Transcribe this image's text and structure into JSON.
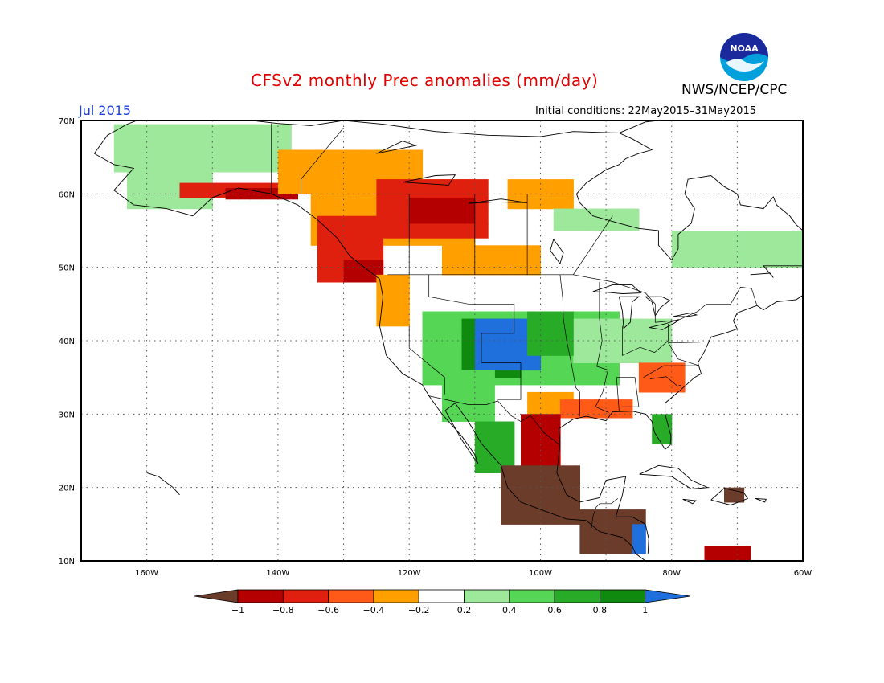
{
  "header": {
    "title": "CFSv2 monthly Prec anomalies (mm/day)",
    "organization": "NWS/NCEP/CPC",
    "valid_month": "Jul 2015",
    "initial_conditions": "Initial conditions: 22May2015–31May2015",
    "logo_text": "NOAA"
  },
  "map": {
    "lon_range": [
      -170,
      -60
    ],
    "lat_range": [
      10,
      70
    ],
    "lat_labels": [
      "70N",
      "60N",
      "50N",
      "40N",
      "30N",
      "20N",
      "10N"
    ],
    "lon_labels": [
      "160W",
      "140W",
      "120W",
      "100W",
      "80W",
      "60W"
    ],
    "grid": "dotted",
    "cell_deg": 1.875
  },
  "colorbar": {
    "tick_labels": [
      "−1",
      "−0.8",
      "−0.6",
      "−0.4",
      "−0.2",
      "0.2",
      "0.4",
      "0.6",
      "0.8",
      "1"
    ],
    "colors": {
      "lt_m1": "#6b3c2a",
      "m1_m08": "#b40000",
      "m08_m06": "#e0200e",
      "m06_m04": "#ff5a18",
      "m04_m02": "#ffa000",
      "m02_p02": "#ffffff",
      "p02_p04": "#9de89a",
      "p04_p06": "#55d655",
      "p06_p08": "#28ac28",
      "p08_p1": "#0f8a0f",
      "gt_p1": "#1f6fdc"
    }
  },
  "anomaly_regions": [
    {
      "name": "alaska-north-slope-wet",
      "value": 0.3,
      "lon": [
        -165,
        -138
      ],
      "lat": [
        63,
        69.5
      ]
    },
    {
      "name": "alaska-interior-wet",
      "value": 0.3,
      "lon": [
        -163,
        -150
      ],
      "lat": [
        58,
        63
      ]
    },
    {
      "name": "alaska-south-coast-dry",
      "value": -0.7,
      "lon": [
        -155,
        -140
      ],
      "lat": [
        59.5,
        61.5
      ]
    },
    {
      "name": "gulf-of-alaska-coast-dry",
      "value": -0.9,
      "lon": [
        -148,
        -137
      ],
      "lat": [
        59.3,
        60.8
      ]
    },
    {
      "name": "yukon-dry",
      "value": -0.3,
      "lon": [
        -140,
        -118
      ],
      "lat": [
        60,
        66
      ]
    },
    {
      "name": "northern-bc-dry",
      "value": -0.3,
      "lon": [
        -135,
        -110
      ],
      "lat": [
        53,
        62
      ]
    },
    {
      "name": "central-canada-dry",
      "value": -0.6,
      "lon": [
        -125,
        -108
      ],
      "lat": [
        54,
        62
      ]
    },
    {
      "name": "central-canada-core",
      "value": -0.9,
      "lon": [
        -120,
        -110
      ],
      "lat": [
        56,
        59.5
      ]
    },
    {
      "name": "bc-coast-dry",
      "value": -0.7,
      "lon": [
        -134,
        -124
      ],
      "lat": [
        48,
        57
      ]
    },
    {
      "name": "bc-coast-core",
      "value": -0.9,
      "lon": [
        -130,
        -124
      ],
      "lat": [
        48,
        51
      ]
    },
    {
      "name": "pacific-northwest-dry",
      "value": -0.3,
      "lon": [
        -125,
        -120
      ],
      "lat": [
        42,
        49
      ]
    },
    {
      "name": "prairies-dry",
      "value": -0.3,
      "lon": [
        -115,
        -100
      ],
      "lat": [
        49,
        53
      ]
    },
    {
      "name": "northwest-territories-dry",
      "value": -0.3,
      "lon": [
        -105,
        -95
      ],
      "lat": [
        58,
        62
      ]
    },
    {
      "name": "hudson-bay-wet",
      "value": 0.3,
      "lon": [
        -98,
        -85
      ],
      "lat": [
        55,
        58
      ]
    },
    {
      "name": "quebec-wet",
      "value": 0.3,
      "lon": [
        -80,
        -60
      ],
      "lat": [
        50,
        55
      ]
    },
    {
      "name": "great-plains-wet",
      "value": 0.5,
      "lon": [
        -118,
        -88
      ],
      "lat": [
        34,
        44
      ]
    },
    {
      "name": "midwest-wet",
      "value": 0.3,
      "lon": [
        -95,
        -80
      ],
      "lat": [
        37,
        43
      ]
    },
    {
      "name": "colorado-wet-core",
      "value": 0.8,
      "lon": [
        -112,
        -103
      ],
      "lat": [
        35,
        43
      ]
    },
    {
      "name": "kansas-wet-core",
      "value": 1.2,
      "lon": [
        -110,
        -100
      ],
      "lat": [
        36,
        43
      ]
    },
    {
      "name": "nebraska-wet",
      "value": 0.7,
      "lon": [
        -102,
        -95
      ],
      "lat": [
        38,
        44
      ]
    },
    {
      "name": "arizona-wet",
      "value": 0.5,
      "lon": [
        -115,
        -107
      ],
      "lat": [
        29,
        36
      ]
    },
    {
      "name": "west-mexico-wet",
      "value": 0.7,
      "lon": [
        -110,
        -104
      ],
      "lat": [
        22,
        29
      ]
    },
    {
      "name": "texas-dry",
      "value": -0.3,
      "lon": [
        -102,
        -95
      ],
      "lat": [
        30,
        33
      ]
    },
    {
      "name": "gulf-coast-dry",
      "value": -0.5,
      "lon": [
        -97,
        -86
      ],
      "lat": [
        29.5,
        32
      ]
    },
    {
      "name": "southeast-dry",
      "value": -0.4,
      "lon": [
        -85,
        -78
      ],
      "lat": [
        33,
        37
      ]
    },
    {
      "name": "florida-wet",
      "value": 0.6,
      "lon": [
        -83,
        -80
      ],
      "lat": [
        26,
        30
      ]
    },
    {
      "name": "mexico-east-dry",
      "value": -0.8,
      "lon": [
        -103,
        -97
      ],
      "lat": [
        22,
        30
      ]
    },
    {
      "name": "mexico-south-very-dry",
      "value": -1.3,
      "lon": [
        -106,
        -94
      ],
      "lat": [
        15,
        23
      ]
    },
    {
      "name": "central-america-very-dry",
      "value": -1.3,
      "lon": [
        -94,
        -84
      ],
      "lat": [
        11,
        17
      ]
    },
    {
      "name": "nicaragua-wet",
      "value": 1.3,
      "lon": [
        -86,
        -84
      ],
      "lat": [
        11,
        15
      ]
    },
    {
      "name": "caribbean-dry",
      "value": -0.9,
      "lon": [
        -75,
        -68
      ],
      "lat": [
        10,
        12
      ]
    },
    {
      "name": "hispaniola-dry",
      "value": -1.2,
      "lon": [
        -72,
        -69
      ],
      "lat": [
        18,
        20
      ]
    }
  ]
}
